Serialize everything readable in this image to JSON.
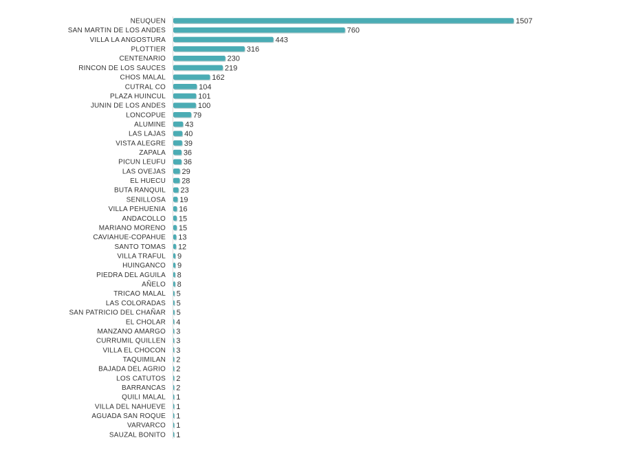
{
  "chart_data": {
    "type": "bar",
    "orientation": "horizontal",
    "bar_color": "#4bacb4",
    "bar_shadow_color": "#2f6f74",
    "grid": false,
    "legend": "none",
    "xlim": [
      0,
      1507
    ],
    "categories": [
      "NEUQUEN",
      "SAN MARTIN DE LOS ANDES",
      "VILLA LA ANGOSTURA",
      "PLOTTIER",
      "CENTENARIO",
      "RINCON DE LOS SAUCES",
      "CHOS MALAL",
      "CUTRAL CO",
      "PLAZA HUINCUL",
      "JUNIN DE LOS ANDES",
      "LONCOPUE",
      "ALUMINE",
      "LAS LAJAS",
      "VISTA ALEGRE",
      "ZAPALA",
      "PICUN LEUFU",
      "LAS OVEJAS",
      "EL HUECU",
      "BUTA RANQUIL",
      "SENILLOSA",
      "VILLA PEHUENIA",
      "ANDACOLLO",
      "MARIANO MORENO",
      "CAVIAHUE-COPAHUE",
      "SANTO TOMAS",
      "VILLA TRAFUL",
      "HUINGANCO",
      "PIEDRA DEL AGUILA",
      "AÑELO",
      "TRICAO MALAL",
      "LAS COLORADAS",
      "SAN PATRICIO DEL CHAÑAR",
      "EL CHOLAR",
      "MANZANO AMARGO",
      "CURRUMIL QUILLEN",
      "VILLA EL CHOCON",
      "TAQUIMILAN",
      "BAJADA DEL AGRIO",
      "LOS CATUTOS",
      "BARRANCAS",
      "QUILI MALAL",
      "VILLA DEL NAHUEVE",
      "AGUADA SAN ROQUE",
      "VARVARCO",
      "SAUZAL BONITO"
    ],
    "values": [
      1507,
      760,
      443,
      316,
      230,
      219,
      162,
      104,
      101,
      100,
      79,
      43,
      40,
      39,
      36,
      36,
      29,
      28,
      23,
      19,
      16,
      15,
      15,
      13,
      12,
      9,
      9,
      8,
      8,
      5,
      5,
      5,
      4,
      3,
      3,
      3,
      2,
      2,
      2,
      2,
      1,
      1,
      1,
      1,
      1
    ]
  }
}
